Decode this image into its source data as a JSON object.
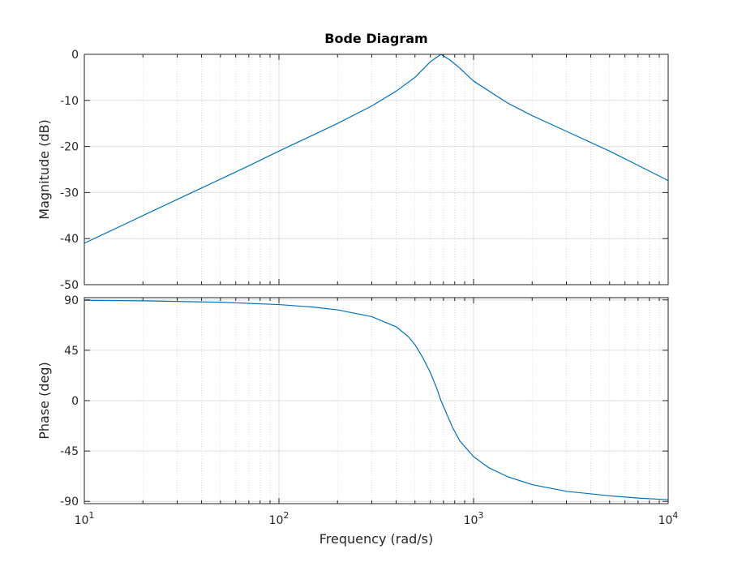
{
  "chart_data": {
    "type": "line",
    "title": "Bode Diagram",
    "xlabel": "Frequency  (rad/s)",
    "xscale": "log",
    "xlim": [
      10,
      10000
    ],
    "x_ticks": [
      {
        "base": "10",
        "exp": "1",
        "value": 10
      },
      {
        "base": "10",
        "exp": "2",
        "value": 100
      },
      {
        "base": "10",
        "exp": "3",
        "value": 1000
      },
      {
        "base": "10",
        "exp": "4",
        "value": 10000
      }
    ],
    "grid": true,
    "line_color": "#0072BD",
    "axis_color": "#262626",
    "grid_color": "#dfdfdf",
    "panels": [
      {
        "id": "magnitude",
        "ylabel": "Magnitude (dB)",
        "ylim": [
          -50,
          0
        ],
        "y_ticks": [
          "0",
          "-10",
          "-20",
          "-30",
          "-40",
          "-50"
        ],
        "y_tick_values": [
          0,
          -10,
          -20,
          -30,
          -40,
          -50
        ],
        "x": [
          10,
          15,
          20,
          30,
          50,
          70,
          100,
          150,
          200,
          300,
          400,
          500,
          600,
          680,
          760,
          850,
          1000,
          1500,
          2000,
          3000,
          5000,
          7000,
          10000
        ],
        "y": [
          -41.0,
          -37.5,
          -35.0,
          -31.5,
          -27.1,
          -24.2,
          -21.0,
          -17.5,
          -15.0,
          -11.2,
          -8.0,
          -5.0,
          -1.6,
          0.0,
          -1.3,
          -3.0,
          -5.8,
          -10.6,
          -13.3,
          -16.7,
          -21.0,
          -24.1,
          -27.4
        ]
      },
      {
        "id": "phase",
        "ylabel": "Phase (deg)",
        "ylim": [
          -92,
          92
        ],
        "y_ticks": [
          "90",
          "45",
          "0",
          "-45",
          "-90"
        ],
        "y_tick_values": [
          90,
          45,
          0,
          -45,
          -90
        ],
        "x": [
          10,
          20,
          50,
          100,
          150,
          200,
          300,
          400,
          460,
          500,
          550,
          600,
          650,
          680,
          720,
          780,
          850,
          1000,
          1200,
          1500,
          2000,
          3000,
          5000,
          7000,
          10000
        ],
        "y": [
          89.6,
          89.2,
          87.9,
          85.8,
          83.6,
          81.1,
          75.0,
          66.0,
          57.5,
          50.0,
          38.0,
          25.0,
          10.0,
          0.0,
          -10.0,
          -24.0,
          -36.0,
          -50.0,
          -60.0,
          -68.0,
          -75.0,
          -81.0,
          -85.0,
          -87.0,
          -88.5
        ]
      }
    ]
  }
}
